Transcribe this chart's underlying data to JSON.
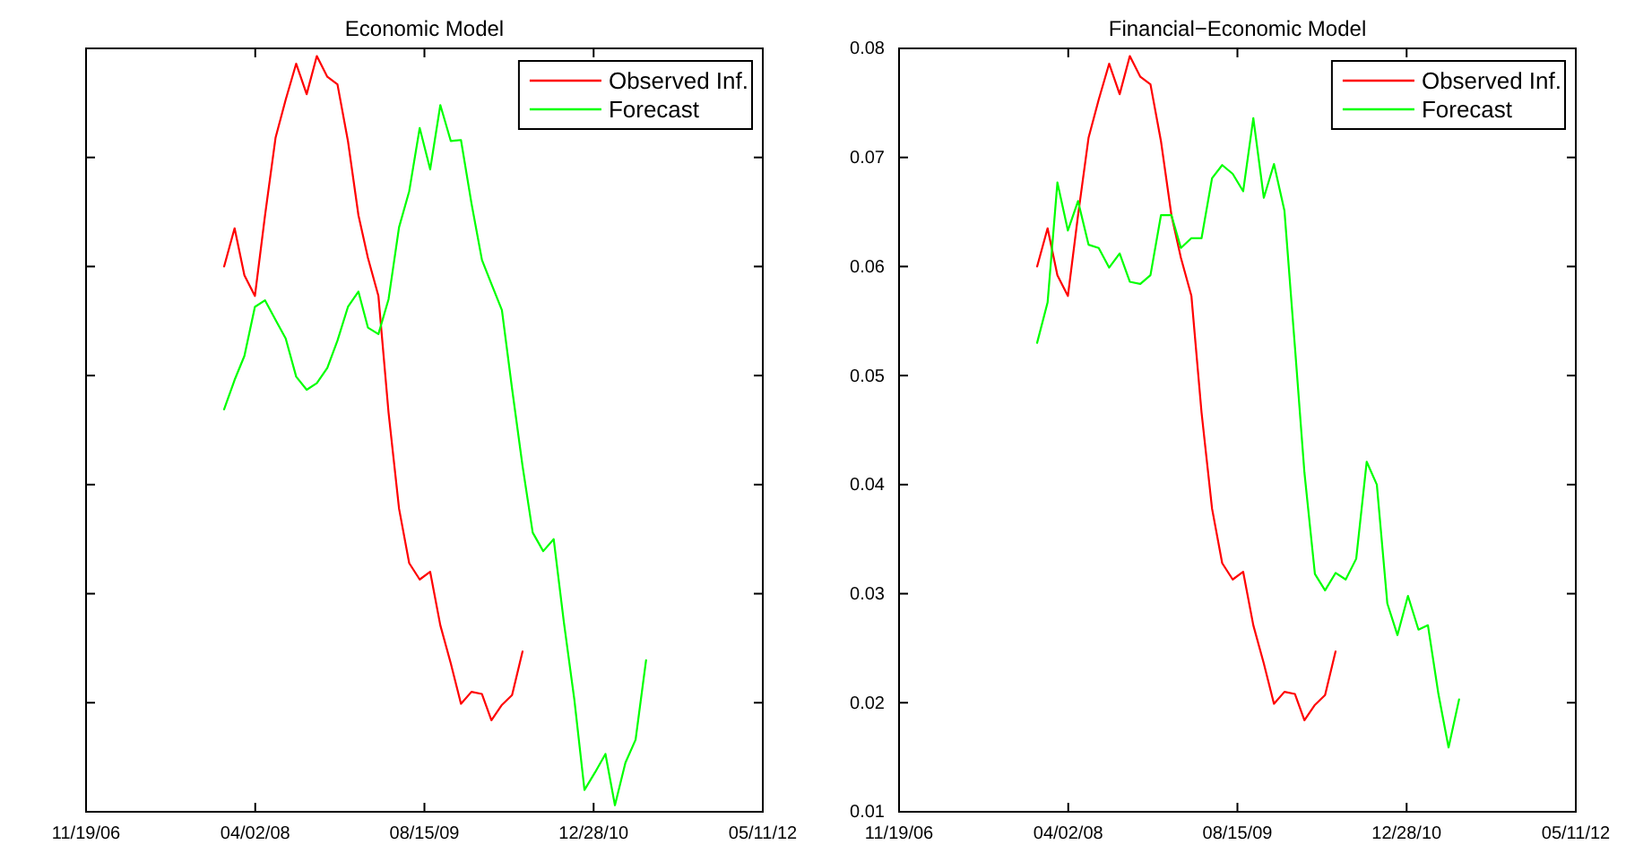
{
  "chart_data": [
    {
      "type": "line",
      "title": "Economic Model",
      "legend": "top right",
      "tick_labels": "x",
      "x": [
        "2008-01",
        "2008-02",
        "2008-03",
        "2008-04",
        "2008-05",
        "2008-06",
        "2008-07",
        "2008-08",
        "2008-09",
        "2008-10",
        "2008-11",
        "2008-12",
        "2009-01",
        "2009-02",
        "2009-03",
        "2009-04",
        "2009-05",
        "2009-06",
        "2009-07",
        "2009-08",
        "2009-09",
        "2009-10",
        "2009-11",
        "2009-12",
        "2010-01",
        "2010-02",
        "2010-03",
        "2010-04",
        "2010-05",
        "2010-06",
        "2010-07",
        "2010-08",
        "2010-09",
        "2010-10",
        "2010-11",
        "2010-12",
        "2011-01",
        "2011-02",
        "2011-03",
        "2011-04",
        "2011-05",
        "2011-06"
      ],
      "xlim": [
        "2006-11-19",
        "2012-05-11"
      ],
      "xticks": [
        {
          "value": "2006-11-19",
          "label": "11/19/06"
        },
        {
          "value": "2008-04-02",
          "label": "04/02/08"
        },
        {
          "value": "2009-08-15",
          "label": "08/15/09"
        },
        {
          "value": "2010-12-28",
          "label": "12/28/10"
        },
        {
          "value": "2012-05-11",
          "label": "05/11/12"
        }
      ],
      "ylim": [
        0.01,
        0.08
      ],
      "yticks": [
        0.01,
        0.02,
        0.03,
        0.04,
        0.05,
        0.06,
        0.07,
        0.08
      ],
      "series": [
        {
          "name": "Observed Inf.",
          "color": "#ff0000",
          "values": [
            0.06,
            0.0635,
            0.0592,
            0.0573,
            0.0647,
            0.0718,
            0.0753,
            0.0786,
            0.0758,
            0.0793,
            0.0774,
            0.0767,
            0.0715,
            0.0647,
            0.0608,
            0.0573,
            0.0466,
            0.0378,
            0.0328,
            0.0313,
            0.032,
            0.0271,
            0.0236,
            0.0199,
            0.021,
            0.0208,
            0.0184,
            0.0198,
            0.0207,
            0.0247,
            null,
            null,
            null,
            null,
            null,
            null,
            null,
            null,
            null,
            null,
            null,
            null
          ]
        },
        {
          "name": "Forecast",
          "color": "#00ff00",
          "values": [
            0.0469,
            0.0496,
            0.0518,
            0.0563,
            0.0569,
            0.0551,
            0.0534,
            0.0499,
            0.0487,
            0.0493,
            0.0507,
            0.0532,
            0.0563,
            0.0577,
            0.0544,
            0.0538,
            0.057,
            0.0636,
            0.0669,
            0.0727,
            0.0689,
            0.0748,
            0.0715,
            0.0716,
            0.0658,
            0.0606,
            0.0584,
            0.056,
            0.0488,
            0.0417,
            0.0356,
            0.0339,
            0.035,
            0.0274,
            0.0203,
            0.012,
            0.0136,
            0.0153,
            0.0106,
            0.0145,
            0.0166,
            0.0239
          ]
        }
      ]
    },
    {
      "type": "line",
      "title": "Financial−Economic Model",
      "legend": "top right",
      "x": [
        "2008-01",
        "2008-02",
        "2008-03",
        "2008-04",
        "2008-05",
        "2008-06",
        "2008-07",
        "2008-08",
        "2008-09",
        "2008-10",
        "2008-11",
        "2008-12",
        "2009-01",
        "2009-02",
        "2009-03",
        "2009-04",
        "2009-05",
        "2009-06",
        "2009-07",
        "2009-08",
        "2009-09",
        "2009-10",
        "2009-11",
        "2009-12",
        "2010-01",
        "2010-02",
        "2010-03",
        "2010-04",
        "2010-05",
        "2010-06",
        "2010-07",
        "2010-08",
        "2010-09",
        "2010-10",
        "2010-11",
        "2010-12",
        "2011-01",
        "2011-02",
        "2011-03",
        "2011-04",
        "2011-05",
        "2011-06"
      ],
      "xlim": [
        "2006-11-19",
        "2012-05-11"
      ],
      "xticks": [
        {
          "value": "2006-11-19",
          "label": "11/19/06"
        },
        {
          "value": "2008-04-02",
          "label": "04/02/08"
        },
        {
          "value": "2009-08-15",
          "label": "08/15/09"
        },
        {
          "value": "2010-12-28",
          "label": "12/28/10"
        },
        {
          "value": "2012-05-11",
          "label": "05/11/12"
        }
      ],
      "ylim": [
        0.01,
        0.08
      ],
      "yticks": [
        0.01,
        0.02,
        0.03,
        0.04,
        0.05,
        0.06,
        0.07,
        0.08
      ],
      "series": [
        {
          "name": "Observed Inf.",
          "color": "#ff0000",
          "values": [
            0.06,
            0.0635,
            0.0592,
            0.0573,
            0.0647,
            0.0718,
            0.0753,
            0.0786,
            0.0758,
            0.0793,
            0.0774,
            0.0767,
            0.0715,
            0.0647,
            0.0608,
            0.0573,
            0.0466,
            0.0378,
            0.0328,
            0.0313,
            0.032,
            0.0271,
            0.0236,
            0.0199,
            0.021,
            0.0208,
            0.0184,
            0.0198,
            0.0207,
            0.0247,
            null,
            null,
            null,
            null,
            null,
            null,
            null,
            null,
            null,
            null,
            null,
            null
          ]
        },
        {
          "name": "Forecast",
          "color": "#00ff00",
          "values": [
            0.053,
            0.0567,
            0.0677,
            0.0633,
            0.066,
            0.062,
            0.0617,
            0.0599,
            0.0612,
            0.0586,
            0.0584,
            0.0592,
            0.0647,
            0.0647,
            0.0617,
            0.0626,
            0.0626,
            0.0681,
            0.0693,
            0.0685,
            0.0669,
            0.0736,
            0.0663,
            0.0694,
            0.0651,
            0.0526,
            0.0411,
            0.0318,
            0.0303,
            0.0319,
            0.0313,
            0.0332,
            0.0421,
            0.04,
            0.0291,
            0.0262,
            0.0298,
            0.0267,
            0.0271,
            0.0208,
            0.0159,
            0.0203
          ]
        }
      ]
    }
  ]
}
